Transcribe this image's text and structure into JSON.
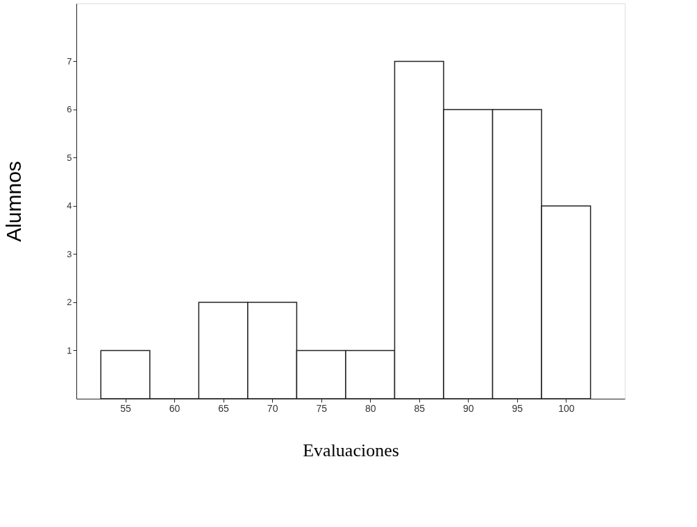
{
  "chart_data": {
    "type": "histogram",
    "xlabel": "Evaluaciones",
    "ylabel": "Alumnos",
    "bins": [
      52.5,
      57.5,
      62.5,
      67.5,
      72.5,
      77.5,
      82.5,
      87.5,
      92.5,
      97.5,
      102.5
    ],
    "values": [
      1,
      0,
      2,
      2,
      1,
      1,
      7,
      6,
      6,
      4
    ],
    "color": "#222222",
    "xlim": [
      50,
      106
    ],
    "xticks": [
      55,
      60,
      65,
      70,
      75,
      80,
      85,
      90,
      95,
      100
    ],
    "ylim": [
      0,
      8.2
    ],
    "yticks": [
      1,
      2,
      3,
      4,
      5,
      6,
      7
    ],
    "grid": false
  }
}
